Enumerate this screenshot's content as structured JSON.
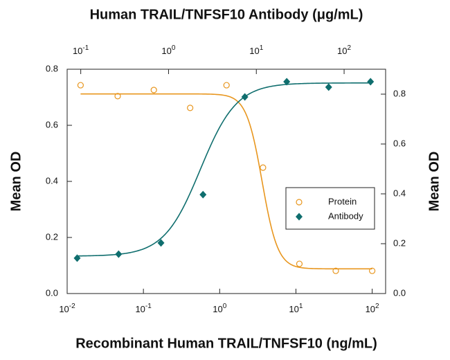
{
  "chart_data": {
    "type": "dose-response",
    "title": "Human TRAIL/TNFSF10 Antibody (μg/mL)",
    "xlabel": "Recombinant Human TRAIL/TNFSF10 (ng/mL)",
    "ylabel": "Mean OD",
    "y2label": "Mean OD",
    "xscale": "log",
    "xlim": [
      0.01,
      150
    ],
    "xticks": [
      {
        "value": 0.01,
        "label": "10",
        "exponent": "-2"
      },
      {
        "value": 0.1,
        "label": "10",
        "exponent": "-1"
      },
      {
        "value": 1,
        "label": "10",
        "exponent": "0"
      },
      {
        "value": 10,
        "label": "10",
        "exponent": "1"
      },
      {
        "value": 100,
        "label": "10",
        "exponent": "2"
      }
    ],
    "x2lim": [
      0.07,
      297
    ],
    "x2ticks": [
      {
        "value": 0.1,
        "label": "10",
        "exponent": "-1"
      },
      {
        "value": 1,
        "label": "10",
        "exponent": "0"
      },
      {
        "value": 10,
        "label": "10",
        "exponent": "1"
      },
      {
        "value": 100,
        "label": "10",
        "exponent": "2"
      }
    ],
    "ylim": [
      0,
      0.8
    ],
    "yticks": [
      {
        "value": 0,
        "label": "0.0"
      },
      0.2,
      0.4,
      0.6,
      0.8
    ],
    "y2lim": [
      0,
      0.9
    ],
    "y2ticks": [
      {
        "value": 0,
        "label": "0.0"
      },
      0.2,
      0.4,
      0.6,
      0.8
    ],
    "legend": "center right",
    "series": [
      {
        "name": "Protein",
        "color": "#e8961e",
        "marker": "circle",
        "xaxis": "x",
        "axis": "y",
        "x": [
          0.015,
          0.046,
          0.137,
          0.41,
          1.23,
          3.7,
          11.1,
          33.3,
          100
        ],
        "values": [
          0.743,
          0.704,
          0.726,
          0.662,
          0.743,
          0.449,
          0.106,
          0.081,
          0.081
        ],
        "fit": {
          "bottom": 0.088,
          "top": 0.712,
          "ec50": 3.6,
          "hill": -4.2
        }
      },
      {
        "name": "Antibody",
        "color": "#0f6e6e",
        "marker": "diamond",
        "xaxis": "x2",
        "axis": "y2",
        "x": [
          0.091,
          0.27,
          0.82,
          2.47,
          7.4,
          22.2,
          66.7,
          200
        ],
        "values": [
          0.142,
          0.158,
          0.203,
          0.397,
          0.789,
          0.85,
          0.828,
          0.85
        ],
        "fit": {
          "bottom": 0.15,
          "top": 0.845,
          "ec50": 2.3,
          "hill": 2.1
        }
      }
    ]
  }
}
